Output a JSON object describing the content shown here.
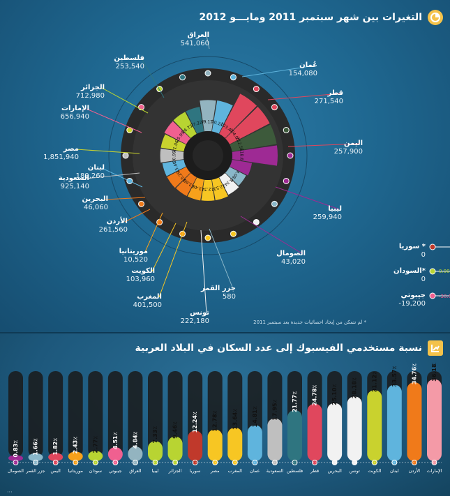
{
  "header": {
    "title": "التغيرات بين شهر سبتمبر 2011 ومايـــو 2012",
    "icon": "pie-chart-icon"
  },
  "note": "* لم نتمكن من إيجاد احصائيات جديدة بعد سبتمبر 2011",
  "bars_header": {
    "title": "نسبة مستخدمي الفيسبوك إلى عدد السكان في البلاد العربية",
    "icon": "growth-chart-icon"
  },
  "chart_data": [
    {
      "type": "pie",
      "title": "التغيرات بين شهر سبتمبر 2011 ومايـــو 2012",
      "slices": [
        {
          "name": "العراق",
          "change": "541,060",
          "pct": "49.13٪",
          "color": "#93b4c0"
        },
        {
          "name": "عُمان",
          "change": "154,080",
          "pct": "50.21٪",
          "color": "#5fb4dd"
        },
        {
          "name": "قطر",
          "change": "271,540",
          "pct": "103.47٪",
          "color": "#e0475d"
        },
        {
          "name": "اليمن",
          "change": "257,900",
          "pct": "104.05٪",
          "color": "#e0475d"
        },
        {
          "name": "السودان",
          "change": "",
          "pct": "112.56٪",
          "color": "#3d5a3b"
        },
        {
          "name": "ليبيا",
          "change": "259,940",
          "pct": "118.6٪",
          "color": "#9e2a94"
        },
        {
          "name": "الصومال",
          "change": "43,020",
          "pct": "",
          "color": "#9e2a94"
        },
        {
          "name": "جزر القمر",
          "change": "580",
          "pct": "4.08٪",
          "color": "#8ab7c9"
        },
        {
          "name": "تونس",
          "change": "222,180",
          "pct": "8.34٪",
          "color": "#f2f2f2"
        },
        {
          "name": "المغرب",
          "change": "401,500",
          "pct": "12.53٪",
          "color": "#f7c623"
        },
        {
          "name": "الكويت",
          "change": "103,960",
          "pct": "12.3٪",
          "color": "#f7c623"
        },
        {
          "name": "موريتانيا",
          "change": "10,520",
          "pct": "13.48٪",
          "color": "#f7a11b"
        },
        {
          "name": "الأردن",
          "change": "261,560",
          "pct": "13.68٪",
          "color": "#f07a1a"
        },
        {
          "name": "البحرين",
          "change": "46,060",
          "pct": "15.25٪",
          "color": "#f07a1a"
        },
        {
          "name": "لبنان",
          "change": "189,260",
          "pct": "15.40٪",
          "color": "#5fb4dd"
        },
        {
          "name": "السعودية",
          "change": "925,140",
          "pct": "20.99٪",
          "color": "#bfbfbf"
        },
        {
          "name": "مصر",
          "change": "1,851,940",
          "pct": "21.06٪",
          "color": "#c9d22e"
        },
        {
          "name": "الإمارات",
          "change": "656,940",
          "pct": "25.99٪",
          "color": "#f06090"
        },
        {
          "name": "الجزائر",
          "change": "712,980",
          "pct": "26.73٪",
          "color": "#b8d432"
        },
        {
          "name": "فلسطين",
          "change": "253,540",
          "pct": "27.22٪",
          "color": "#2f7580"
        }
      ],
      "side_legend": [
        {
          "name": "سوريا *",
          "value": "0",
          "color": "#c0392b"
        },
        {
          "name": "السودان*",
          "value": "0",
          "color": "#b8d432"
        },
        {
          "name": "جيبوتي",
          "value": "-19,200",
          "color": "#f06090"
        }
      ],
      "side_pcts": [
        "0.00٪",
        "-30.6"
      ]
    },
    {
      "type": "bar",
      "title": "نسبة مستخدمي الفيسبوك إلى عدد السكان في البلاد العربية",
      "categories": [
        "الإمارات",
        "الأردن",
        "لبنان",
        "الكويت",
        "تونس",
        "البحرين",
        "قطر",
        "فلسطين",
        "السعودية",
        "عمان",
        "المغرب",
        "مصر",
        "سوريا",
        "الجزائر",
        "ليبيا",
        "العراق",
        "جيبوتي",
        "سودان",
        "موريتانيا",
        "اليمن",
        "جزر القمر",
        "الصومال"
      ],
      "values": [
        36.18,
        34.76,
        33.57,
        31.12,
        28.18,
        25.1,
        24.78,
        21.77,
        17.95,
        14.81,
        13.64,
        12.78,
        12.24,
        9.46,
        7.33,
        4.84,
        4.51,
        2.77,
        2.43,
        1.82,
        1.66,
        0.83
      ],
      "labels": [
        "36.18٪",
        "34.76٪",
        "33.57٪",
        "31.12٪",
        "28.18٪",
        "25.10٪",
        "24.78٪",
        "21.77٪",
        "17.95٪",
        "14.81٪",
        "13.64٪",
        "12.78٪",
        "12.24٪",
        "9.46٪",
        "7.33٪",
        "4.84٪",
        "4.51٪",
        "2.77٪",
        "2.43٪",
        "1.82٪",
        "1.66٪",
        "0.83٪"
      ],
      "colors": [
        "#f49aa7",
        "#f07a1a",
        "#5fb4dd",
        "#c9d22e",
        "#f2f2f2",
        "#f2f2f2",
        "#e0475d",
        "#2f7580",
        "#bfbfbf",
        "#5fb4dd",
        "#f7c623",
        "#f7c623",
        "#c0392b",
        "#b8d432",
        "#b8d432",
        "#93b4c0",
        "#f06090",
        "#b8d432",
        "#f7a11b",
        "#e0475d",
        "#8ab7c9",
        "#9e2a94"
      ],
      "ylim": [
        0,
        40
      ]
    }
  ]
}
